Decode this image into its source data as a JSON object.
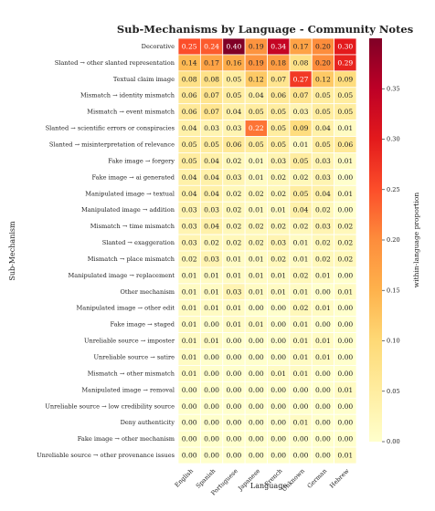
{
  "chart_data": {
    "type": "heatmap",
    "title": "Sub-Mechanisms by Language - Community Notes",
    "x_label": "Language",
    "y_label": "Sub-Mechanism",
    "colorbar_label": "within-language proportion",
    "colors": [
      "#ffffcc",
      "#ffeda0",
      "#fed976",
      "#feb24c",
      "#fd8d3c",
      "#fc4e2a",
      "#e31a1c",
      "#bd0026",
      "#800026"
    ],
    "clim": [
      0,
      0.4
    ],
    "cticks": [
      {
        "value": 0,
        "label": "0.00"
      },
      {
        "value": 0.05,
        "label": "0.05"
      },
      {
        "value": 0.1,
        "label": "0.10"
      },
      {
        "value": 0.15,
        "label": "0.15"
      },
      {
        "value": 0.2,
        "label": "0.20"
      },
      {
        "value": 0.25,
        "label": "0.25"
      },
      {
        "value": 0.3,
        "label": "0.30"
      },
      {
        "value": 0.35,
        "label": "0.35"
      }
    ],
    "columns": [
      "English",
      "Spanish",
      "Portuguese",
      "Japanese",
      "French",
      "Unknown",
      "German",
      "Hebrew"
    ],
    "rows": [
      "Decorative",
      "Slanted → other slanted representation",
      "Textual claim image",
      "Mismatch → identity mismatch",
      "Mismatch → event mismatch",
      "Slanted → scientific errors or conspiracies",
      "Slanted → misinterpretation of relevance",
      "Fake image → forgery",
      "Fake image → ai generated",
      "Manipulated image → textual",
      "Manipulated image → addition",
      "Mismatch → time mismatch",
      "Slanted → exaggeration",
      "Mismatch → place mismatch",
      "Manipulated image → replacement",
      "Other mechanism",
      "Manipulated image → other edit",
      "Fake image → staged",
      "Unreliable source → imposter",
      "Unreliable source → satire",
      "Mismatch → other mismatch",
      "Manipulated image → removal",
      "Unreliable source → low credibility source",
      "Deny authenticity",
      "Fake image → other mechanism",
      "Unreliable source → other provenance issues"
    ],
    "values": [
      [
        0.25,
        0.24,
        0.4,
        0.19,
        0.34,
        0.17,
        0.2,
        0.3
      ],
      [
        0.14,
        0.17,
        0.16,
        0.19,
        0.18,
        0.08,
        0.2,
        0.29
      ],
      [
        0.08,
        0.08,
        0.05,
        0.12,
        0.07,
        0.27,
        0.12,
        0.09
      ],
      [
        0.06,
        0.07,
        0.05,
        0.04,
        0.06,
        0.07,
        0.05,
        0.05
      ],
      [
        0.06,
        0.07,
        0.04,
        0.05,
        0.05,
        0.03,
        0.05,
        0.05
      ],
      [
        0.04,
        0.03,
        0.03,
        0.22,
        0.05,
        0.09,
        0.04,
        0.01
      ],
      [
        0.05,
        0.05,
        0.06,
        0.05,
        0.05,
        0.01,
        0.05,
        0.06
      ],
      [
        0.05,
        0.04,
        0.02,
        0.01,
        0.03,
        0.05,
        0.03,
        0.01
      ],
      [
        0.04,
        0.04,
        0.03,
        0.01,
        0.02,
        0.02,
        0.03,
        0
      ],
      [
        0.04,
        0.04,
        0.02,
        0.02,
        0.02,
        0.05,
        0.04,
        0.01
      ],
      [
        0.03,
        0.03,
        0.02,
        0.01,
        0.01,
        0.04,
        0.02,
        0
      ],
      [
        0.03,
        0.04,
        0.02,
        0.02,
        0.02,
        0.02,
        0.03,
        0.02
      ],
      [
        0.03,
        0.02,
        0.02,
        0.02,
        0.03,
        0.01,
        0.02,
        0.02
      ],
      [
        0.02,
        0.03,
        0.01,
        0.01,
        0.02,
        0.01,
        0.02,
        0.02
      ],
      [
        0.01,
        0.01,
        0.01,
        0.01,
        0.01,
        0.02,
        0.01,
        0
      ],
      [
        0.01,
        0.01,
        0.03,
        0.01,
        0.01,
        0.01,
        0,
        0.01
      ],
      [
        0.01,
        0.01,
        0.01,
        0,
        0,
        0.02,
        0.01,
        0
      ],
      [
        0.01,
        0,
        0.01,
        0.01,
        0,
        0.01,
        0,
        0
      ],
      [
        0.01,
        0.01,
        0,
        0,
        0,
        0.01,
        0.01,
        0
      ],
      [
        0.01,
        0,
        0,
        0,
        0,
        0.01,
        0.01,
        0
      ],
      [
        0.01,
        0,
        0,
        0,
        0.01,
        0.01,
        0,
        0
      ],
      [
        0,
        0,
        0,
        0,
        0,
        0,
        0,
        0.01
      ],
      [
        0,
        0,
        0,
        0,
        0,
        0,
        0,
        0
      ],
      [
        0,
        0,
        0,
        0,
        0,
        0.01,
        0,
        0
      ],
      [
        0,
        0,
        0,
        0,
        0,
        0,
        0,
        0
      ],
      [
        0,
        0,
        0,
        0,
        0,
        0,
        0,
        0.01
      ]
    ],
    "value_labels": [
      [
        "0.25",
        "0.24",
        "0.40",
        "0.19",
        "0.34",
        "0.17",
        "0.20",
        "0.30"
      ],
      [
        "0.14",
        "0.17",
        "0.16",
        "0.19",
        "0.18",
        "0.08",
        "0.20",
        "0.29"
      ],
      [
        "0.08",
        "0.08",
        "0.05",
        "0.12",
        "0.07",
        "0.27",
        "0.12",
        "0.09"
      ],
      [
        "0.06",
        "0.07",
        "0.05",
        "0.04",
        "0.06",
        "0.07",
        "0.05",
        "0.05"
      ],
      [
        "0.06",
        "0.07",
        "0.04",
        "0.05",
        "0.05",
        "0.03",
        "0.05",
        "0.05"
      ],
      [
        "0.04",
        "0.03",
        "0.03",
        "0.22",
        "0.05",
        "0.09",
        "0.04",
        "0.01"
      ],
      [
        "0.05",
        "0.05",
        "0.06",
        "0.05",
        "0.05",
        "0.01",
        "0.05",
        "0.06"
      ],
      [
        "0.05",
        "0.04",
        "0.02",
        "0.01",
        "0.03",
        "0.05",
        "0.03",
        "0.01"
      ],
      [
        "0.04",
        "0.04",
        "0.03",
        "0.01",
        "0.02",
        "0.02",
        "0.03",
        "0.00"
      ],
      [
        "0.04",
        "0.04",
        "0.02",
        "0.02",
        "0.02",
        "0.05",
        "0.04",
        "0.01"
      ],
      [
        "0.03",
        "0.03",
        "0.02",
        "0.01",
        "0.01",
        "0.04",
        "0.02",
        "0.00"
      ],
      [
        "0.03",
        "0.04",
        "0.02",
        "0.02",
        "0.02",
        "0.02",
        "0.03",
        "0.02"
      ],
      [
        "0.03",
        "0.02",
        "0.02",
        "0.02",
        "0.03",
        "0.01",
        "0.02",
        "0.02"
      ],
      [
        "0.02",
        "0.03",
        "0.01",
        "0.01",
        "0.02",
        "0.01",
        "0.02",
        "0.02"
      ],
      [
        "0.01",
        "0.01",
        "0.01",
        "0.01",
        "0.01",
        "0.02",
        "0.01",
        "0.00"
      ],
      [
        "0.01",
        "0.01",
        "0.03",
        "0.01",
        "0.01",
        "0.01",
        "0.00",
        "0.01"
      ],
      [
        "0.01",
        "0.01",
        "0.01",
        "0.00",
        "0.00",
        "0.02",
        "0.01",
        "0.00"
      ],
      [
        "0.01",
        "0.00",
        "0.01",
        "0.01",
        "0.00",
        "0.01",
        "0.00",
        "0.00"
      ],
      [
        "0.01",
        "0.01",
        "0.00",
        "0.00",
        "0.00",
        "0.01",
        "0.01",
        "0.00"
      ],
      [
        "0.01",
        "0.00",
        "0.00",
        "0.00",
        "0.00",
        "0.01",
        "0.01",
        "0.00"
      ],
      [
        "0.01",
        "0.00",
        "0.00",
        "0.00",
        "0.01",
        "0.01",
        "0.00",
        "0.00"
      ],
      [
        "0.00",
        "0.00",
        "0.00",
        "0.00",
        "0.00",
        "0.00",
        "0.00",
        "0.01"
      ],
      [
        "0.00",
        "0.00",
        "0.00",
        "0.00",
        "0.00",
        "0.00",
        "0.00",
        "0.00"
      ],
      [
        "0.00",
        "0.00",
        "0.00",
        "0.00",
        "0.00",
        "0.01",
        "0.00",
        "0.00"
      ],
      [
        "0.00",
        "0.00",
        "0.00",
        "0.00",
        "0.00",
        "0.00",
        "0.00",
        "0.00"
      ],
      [
        "0.00",
        "0.00",
        "0.00",
        "0.00",
        "0.00",
        "0.00",
        "0.00",
        "0.01"
      ]
    ]
  }
}
